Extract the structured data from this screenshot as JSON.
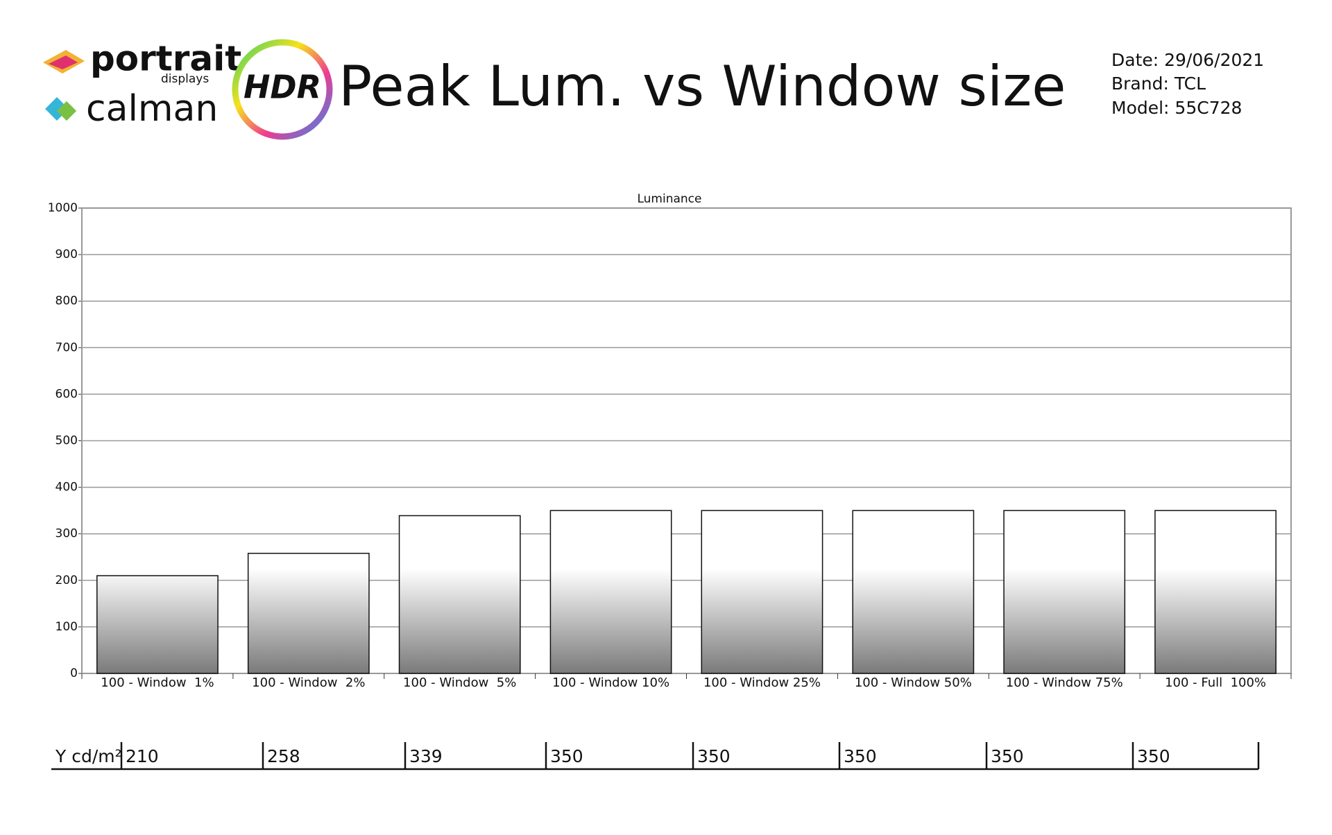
{
  "header": {
    "logo_top": "portrait",
    "logo_sub": "displays",
    "logo_bottom": "calman",
    "badge": "HDR",
    "title": "Peak Lum. vs Window size",
    "info": [
      "Date: 29/06/2021",
      "Brand: TCL",
      "Model: 55C728"
    ]
  },
  "chart_data": {
    "type": "bar",
    "title": "Luminance",
    "categories": [
      "100 - Window  1%",
      "100 - Window  2%",
      "100 - Window  5%",
      "100 - Window 10%",
      "100 - Window 25%",
      "100 - Window 50%",
      "100 - Window 75%",
      "100 - Full  100%"
    ],
    "values": [
      210,
      258,
      339,
      350,
      350,
      350,
      350,
      350
    ],
    "ylim": [
      0,
      1000
    ],
    "yticks": [
      0,
      100,
      200,
      300,
      400,
      500,
      600,
      700,
      800,
      900,
      1000
    ],
    "grid": true,
    "table_label": "Y cd/m²"
  }
}
